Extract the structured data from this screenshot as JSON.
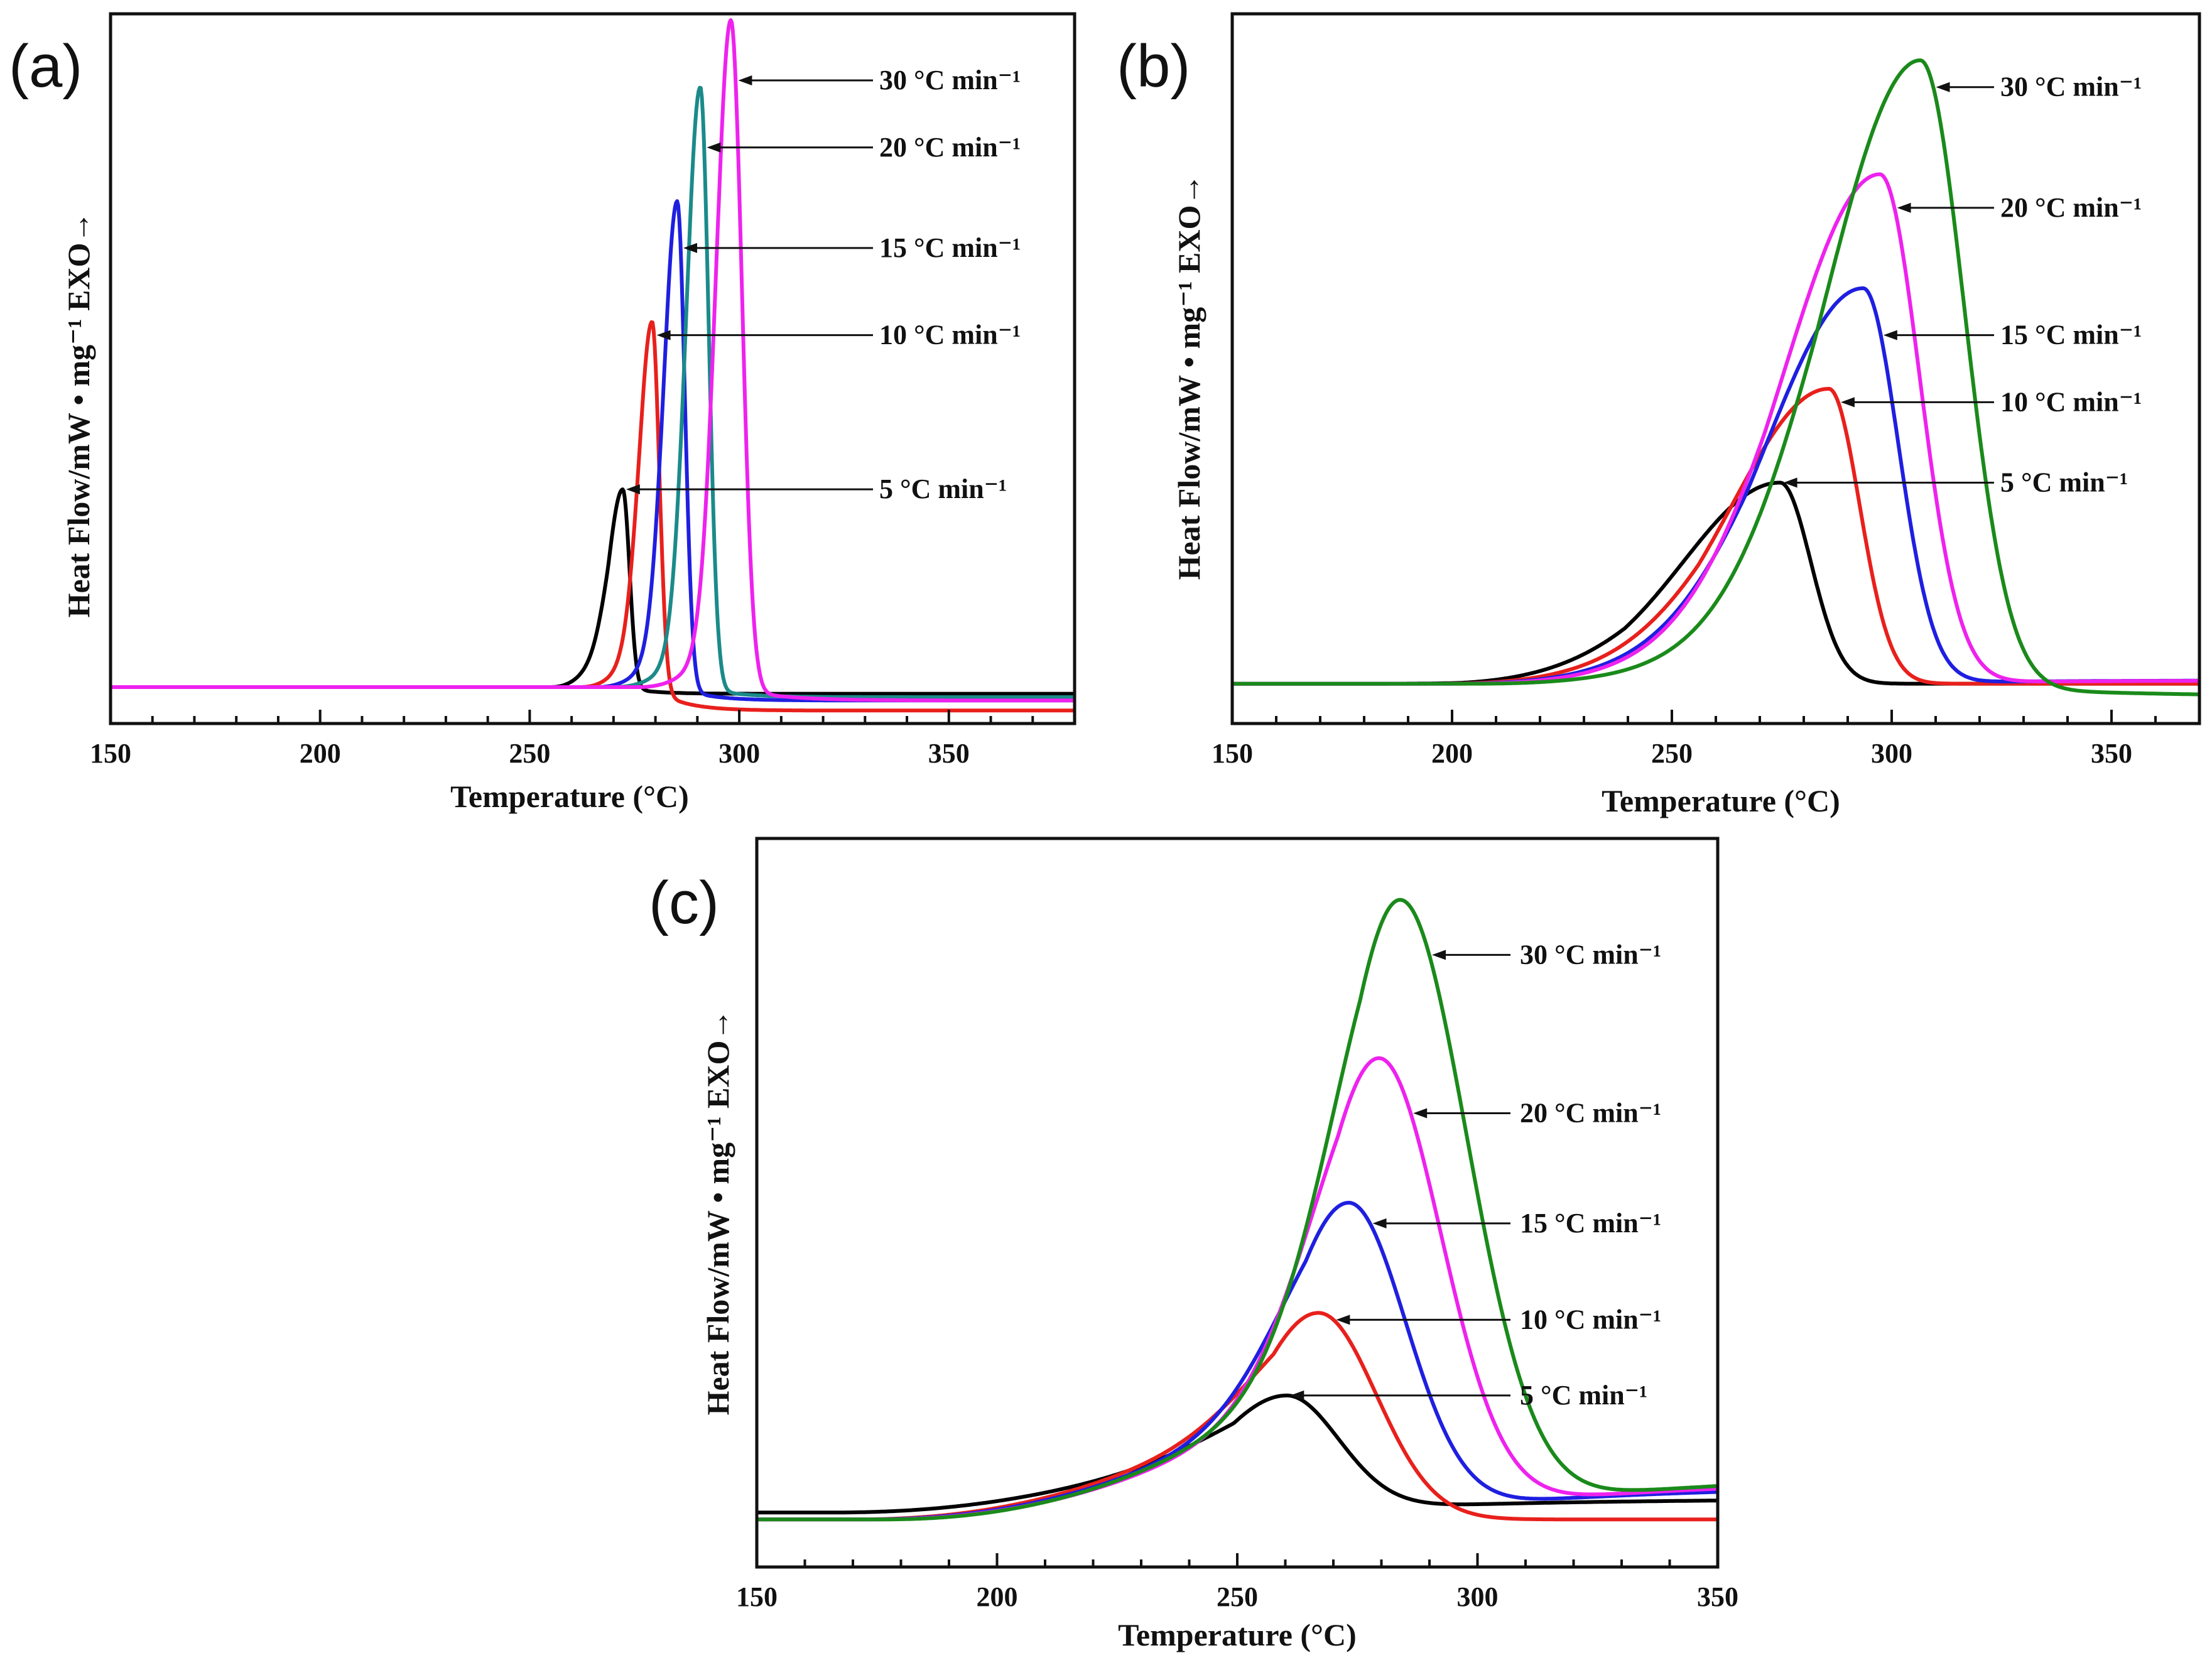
{
  "figure": {
    "legend_colors": {
      "5 °C min-1": "#000000",
      "10 °C min-1": "#e8201c",
      "15 °C min-1": "#1f1fe0",
      "20 °C min-1 (a)": "#1b8a8a",
      "20 °C min-1 (b,c)": "#ee22ee",
      "30 °C min-1 (a)": "#ee22ee",
      "30 °C min-1 (b,c)": "#1a8a1a"
    }
  },
  "chart_data": [
    {
      "panel": "(a)",
      "type": "line",
      "xlabel": "Temperature (°C)",
      "ylabel": "Heat Flow/mW • mg⁻¹ EXO→",
      "xlim": [
        150,
        380
      ],
      "ylim": [
        -0.2,
        10.2
      ],
      "xticks": [
        "150",
        "200",
        "250",
        "300",
        "350"
      ],
      "xtick_values": [
        150,
        200,
        250,
        300,
        350
      ],
      "series": [
        {
          "name": "5 °C min⁻¹",
          "color": "#000000",
          "baseline": 0.25,
          "tail": 0.15,
          "onset": 255,
          "peak_x": 272.2,
          "peak_y": 3.2,
          "shoulder": 1.2,
          "w_left": 3.5,
          "w_right": 1.6,
          "label": "5 °C min⁻¹",
          "label_y": 3.2
        },
        {
          "name": "10 °C min⁻¹",
          "color": "#e8201c",
          "baseline": 0.25,
          "tail": -0.1,
          "onset": 262,
          "peak_x": 279.2,
          "peak_y": 5.7,
          "shoulder": 1.0,
          "w_left": 3.2,
          "w_right": 1.7,
          "label": "10 °C min⁻¹",
          "label_y": 5.5
        },
        {
          "name": "15 °C min⁻¹",
          "color": "#1f1fe0",
          "baseline": 0.25,
          "tail": 0.05,
          "onset": 266,
          "peak_x": 285.2,
          "peak_y": 7.5,
          "shoulder": 0.9,
          "w_left": 3.3,
          "w_right": 1.8,
          "label": "15 °C min⁻¹",
          "label_y": 6.8
        },
        {
          "name": "20 °C min⁻¹",
          "color": "#1b8a8a",
          "baseline": 0.25,
          "tail": 0.1,
          "onset": 270,
          "peak_x": 290.7,
          "peak_y": 9.2,
          "shoulder": 0.8,
          "w_left": 3.4,
          "w_right": 2.0,
          "label": "20 °C min⁻¹",
          "label_y": 8.3
        },
        {
          "name": "30 °C min⁻¹",
          "color": "#ee22ee",
          "baseline": 0.25,
          "tail": 0.05,
          "onset": 276,
          "peak_x": 298.0,
          "peak_y": 10.2,
          "shoulder": 0.9,
          "w_left": 3.6,
          "w_right": 2.6,
          "label": "30 °C min⁻¹",
          "label_y": 9.3
        }
      ]
    },
    {
      "panel": "(b)",
      "type": "line",
      "xlabel": "Temperature (°C)",
      "ylabel": "Heat Flow/mW • mg⁻¹ EXO→",
      "xlim": [
        150,
        370
      ],
      "ylim": [
        -0.2,
        10.2
      ],
      "xticks": [
        "150",
        "200",
        "250",
        "300",
        "350"
      ],
      "xtick_values": [
        150,
        200,
        250,
        300,
        350
      ],
      "series": [
        {
          "name": "5 °C min⁻¹",
          "color": "#000000",
          "baseline": 0.3,
          "tail": 0.3,
          "onset": 195,
          "peak_x": 274.6,
          "peak_y": 3.3,
          "shoulder": 1.6,
          "w_left": 22,
          "w_right": 7,
          "label": "5 °C min⁻¹",
          "label_y": 3.3
        },
        {
          "name": "10 °C min⁻¹",
          "color": "#e8201c",
          "baseline": 0.3,
          "tail": 0.3,
          "onset": 198,
          "peak_x": 285.7,
          "peak_y": 4.7,
          "shoulder": 1.5,
          "w_left": 22,
          "w_right": 7,
          "label": "10 °C min⁻¹",
          "label_y": 4.5
        },
        {
          "name": "15 °C min⁻¹",
          "color": "#1f1fe0",
          "baseline": 0.3,
          "tail": 0.35,
          "onset": 200,
          "peak_x": 293.5,
          "peak_y": 6.2,
          "shoulder": 1.5,
          "w_left": 22,
          "w_right": 8,
          "label": "15 °C min⁻¹",
          "label_y": 5.5
        },
        {
          "name": "20 °C min⁻¹",
          "color": "#ee22ee",
          "baseline": 0.3,
          "tail": 0.35,
          "onset": 202,
          "peak_x": 297.3,
          "peak_y": 7.9,
          "shoulder": 1.5,
          "w_left": 22,
          "w_right": 9,
          "label": "20 °C min⁻¹",
          "label_y": 7.4
        },
        {
          "name": "30 °C min⁻¹",
          "color": "#1a8a1a",
          "baseline": 0.3,
          "tail": 0.1,
          "onset": 205,
          "peak_x": 306.5,
          "peak_y": 9.6,
          "shoulder": 1.4,
          "w_left": 22,
          "w_right": 10,
          "label": "30 °C min⁻¹",
          "label_y": 9.2
        }
      ]
    },
    {
      "panel": "(c)",
      "type": "line",
      "xlabel": "Temperature (°C)",
      "ylabel": "Heat Flow/mW • mg⁻¹ EXO→",
      "xlim": [
        150,
        350
      ],
      "ylim": [
        -0.2,
        10.2
      ],
      "xticks": [
        "150",
        "200",
        "250",
        "300",
        "350"
      ],
      "xtick_values": [
        150,
        200,
        250,
        300,
        350
      ],
      "series": [
        {
          "name": "5 °C min⁻¹",
          "color": "#000000",
          "baseline": 0.5,
          "tail": 0.7,
          "onset": 165,
          "peak_x": 260.3,
          "peak_y": 2.2,
          "shoulder": 1.5,
          "w_left": 15,
          "w_right": 11,
          "label": "5 °C min⁻¹",
          "label_y": 2.2
        },
        {
          "name": "10 °C min⁻¹",
          "color": "#e8201c",
          "baseline": 0.4,
          "tail": 0.4,
          "onset": 170,
          "peak_x": 266.9,
          "peak_y": 3.4,
          "shoulder": 2.2,
          "w_left": 14,
          "w_right": 12,
          "label": "10 °C min⁻¹",
          "label_y": 3.3
        },
        {
          "name": "15 °C min⁻¹",
          "color": "#1f1fe0",
          "baseline": 0.4,
          "tail": 0.9,
          "onset": 172,
          "peak_x": 273.2,
          "peak_y": 5.0,
          "shoulder": 2.4,
          "w_left": 14,
          "w_right": 12,
          "label": "15 °C min⁻¹",
          "label_y": 4.7
        },
        {
          "name": "20 °C min⁻¹",
          "color": "#ee22ee",
          "baseline": 0.4,
          "tail": 1.0,
          "onset": 174,
          "peak_x": 279.5,
          "peak_y": 7.1,
          "shoulder": 2.7,
          "w_left": 14,
          "w_right": 13,
          "label": "20 °C min⁻¹",
          "label_y": 6.3
        },
        {
          "name": "30 °C min⁻¹",
          "color": "#1a8a1a",
          "baseline": 0.4,
          "tail": 1.1,
          "onset": 176,
          "peak_x": 283.9,
          "peak_y": 9.4,
          "shoulder": 3.2,
          "w_left": 14,
          "w_right": 14,
          "label": "30 °C min⁻¹",
          "label_y": 8.6
        }
      ]
    }
  ]
}
